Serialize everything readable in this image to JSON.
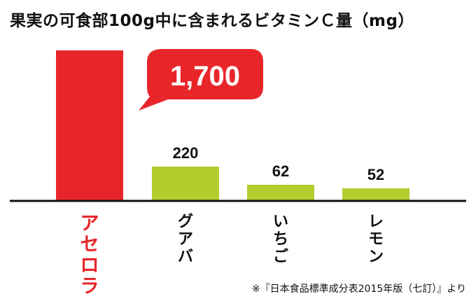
{
  "chart_data": {
    "type": "bar",
    "title": "果実の可食部100g中に含まれるビタミンＣ量（mg）",
    "categories": [
      "アセロラ",
      "グアバ",
      "いちご",
      "レモン"
    ],
    "values": [
      1700,
      220,
      62,
      52
    ],
    "value_labels": [
      "1,700",
      "220",
      "62",
      "52"
    ],
    "colors": [
      "#e8262a",
      "#b5cc2e",
      "#b5cc2e",
      "#b5cc2e"
    ],
    "category_label_colors": [
      "#e8262a",
      "#111111",
      "#111111",
      "#111111"
    ],
    "highlight": {
      "category": "アセロラ",
      "style": "speech-bubble",
      "color": "#e8262a"
    },
    "grid": false,
    "legend": "none",
    "source": "※『日本食品標準成分表2015年版（七訂）』より"
  }
}
